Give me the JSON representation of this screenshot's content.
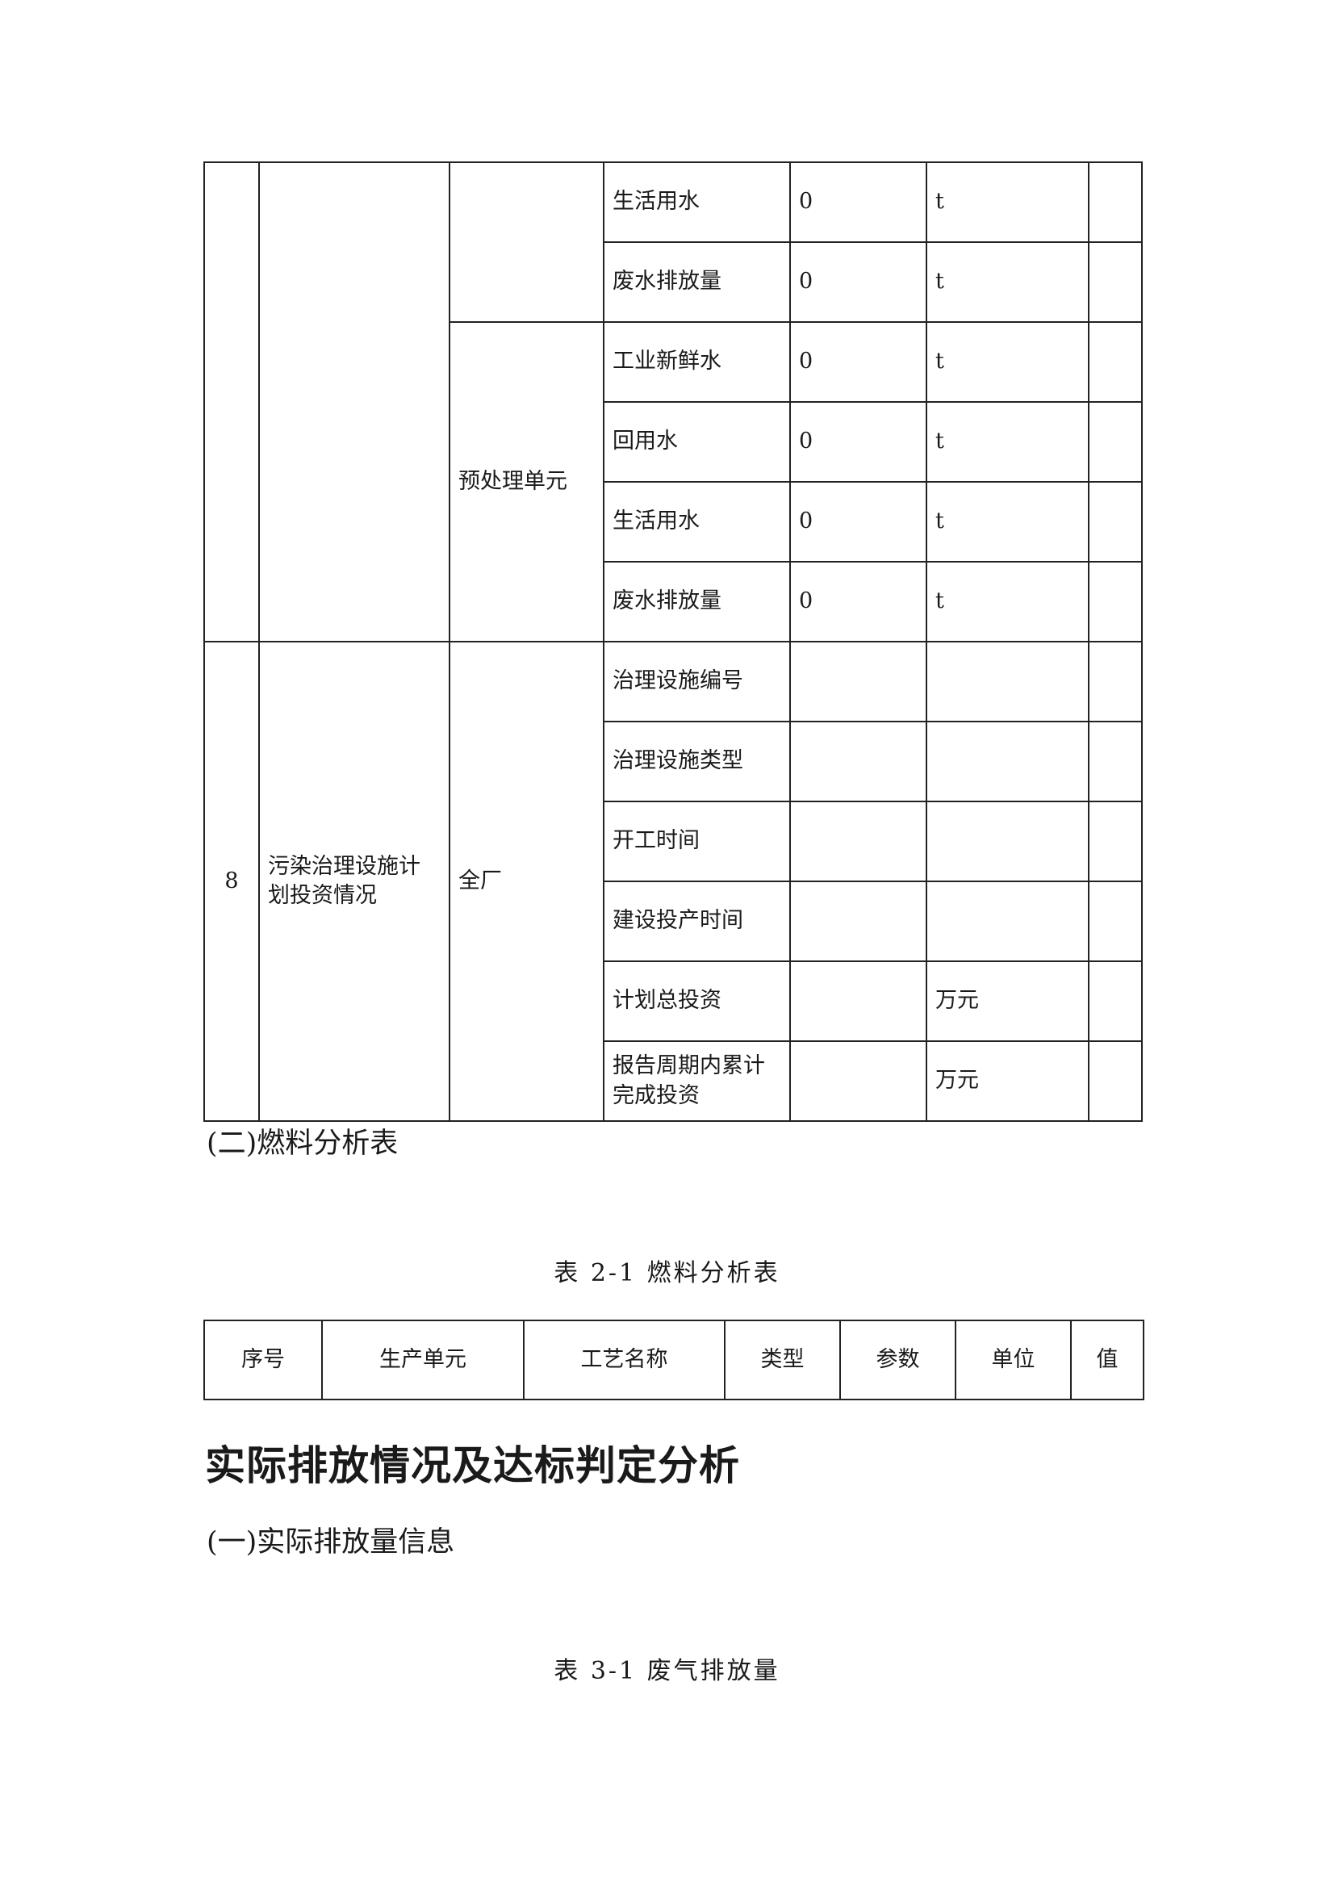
{
  "table1": {
    "rows_top": [
      {
        "param": "生活用水",
        "value": "0",
        "unit": "t"
      },
      {
        "param": "废水排放量",
        "value": "0",
        "unit": "t"
      }
    ],
    "pretreat_unit": "预处理单元",
    "rows_pretreat": [
      {
        "param": "工业新鲜水",
        "value": "0",
        "unit": "t"
      },
      {
        "param": "回用水",
        "value": "0",
        "unit": "t"
      },
      {
        "param": "生活用水",
        "value": "0",
        "unit": "t"
      },
      {
        "param": "废水排放量",
        "value": "0",
        "unit": "t"
      }
    ],
    "item8": {
      "index": "8",
      "name": "污染治理设施计划投资情况",
      "unit_scope": "全厂",
      "rows": [
        {
          "param": "治理设施编号",
          "value": "",
          "unit": ""
        },
        {
          "param": "治理设施类型",
          "value": "",
          "unit": ""
        },
        {
          "param": "开工时间",
          "value": "",
          "unit": ""
        },
        {
          "param": "建设投产时间",
          "value": "",
          "unit": ""
        },
        {
          "param": "计划总投资",
          "value": "",
          "unit": "万元"
        },
        {
          "param": "报告周期内累计完成投资",
          "value": "",
          "unit": "万元"
        }
      ]
    }
  },
  "section_fuel": "(二)燃料分析表",
  "caption_2_1": "表 2-1  燃料分析表",
  "table2": {
    "headers": [
      "序号",
      "生产单元",
      "工艺名称",
      "类型",
      "参数",
      "单位",
      "值"
    ]
  },
  "heading": "实际排放情况及达标判定分析",
  "section_actual": "(一)实际排放量信息",
  "caption_3_1": "表 3-1  废气排放量"
}
